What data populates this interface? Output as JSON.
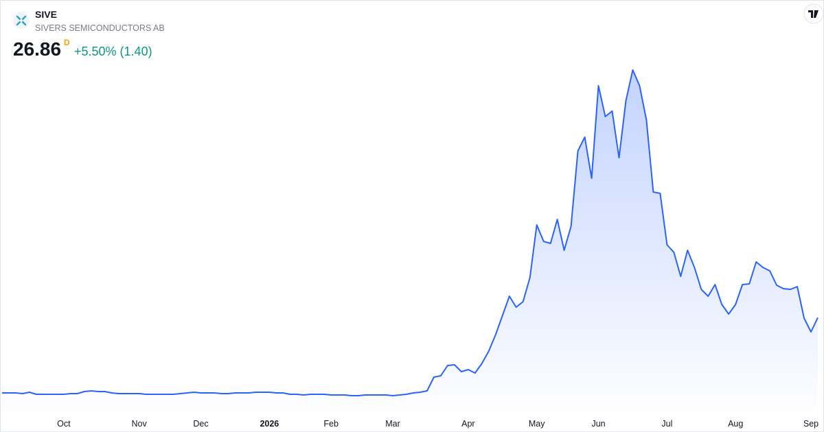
{
  "header": {
    "symbol": "SIVE",
    "name": "SIVERS SEMICONDUCTORS AB",
    "price": "26.86",
    "interval": "D",
    "change": "+5.50% (1.40)"
  },
  "chart_data": {
    "type": "area",
    "color": "#2962ff",
    "categories": [
      null,
      null,
      null,
      null,
      null,
      null,
      null,
      null,
      null,
      "Oct",
      null,
      null,
      null,
      null,
      null,
      null,
      null,
      null,
      null,
      null,
      "Nov",
      null,
      null,
      null,
      null,
      null,
      null,
      null,
      null,
      "Dec",
      null,
      null,
      null,
      null,
      null,
      null,
      null,
      null,
      null,
      "2026",
      null,
      null,
      null,
      null,
      null,
      null,
      null,
      null,
      "Feb",
      null,
      null,
      null,
      null,
      null,
      null,
      null,
      null,
      "Mar",
      null,
      null,
      null,
      null,
      null,
      null,
      null,
      null,
      null,
      null,
      "Apr",
      null,
      null,
      null,
      null,
      null,
      null,
      null,
      null,
      null,
      "May",
      null,
      null,
      null,
      null,
      null,
      null,
      null,
      null,
      "Jun",
      null,
      null,
      null,
      null,
      null,
      null,
      null,
      null,
      null,
      "Jul",
      null,
      null,
      null,
      null,
      null,
      null,
      null,
      null,
      null,
      "Aug",
      null,
      null,
      null,
      null,
      null,
      null,
      null,
      null,
      null,
      null,
      "Sep",
      null
    ],
    "values": [
      4.9,
      4.9,
      4.9,
      4.7,
      5.1,
      4.5,
      4.5,
      4.5,
      4.5,
      4.5,
      4.7,
      4.7,
      5.3,
      5.5,
      5.3,
      5.3,
      4.9,
      4.7,
      4.7,
      4.7,
      4.7,
      4.5,
      4.5,
      4.5,
      4.5,
      4.5,
      4.7,
      4.9,
      5.1,
      4.9,
      4.9,
      4.9,
      4.7,
      4.7,
      4.9,
      4.9,
      4.9,
      5.1,
      5.1,
      5.1,
      4.9,
      4.9,
      4.5,
      4.5,
      4.3,
      4.5,
      4.5,
      4.5,
      4.3,
      4.3,
      4.3,
      4.1,
      4.1,
      4.3,
      4.3,
      4.3,
      4.3,
      4.1,
      4.3,
      4.5,
      4.9,
      5.1,
      5.5,
      9.5,
      9.9,
      12.9,
      13.1,
      11.1,
      11.7,
      10.7,
      13.5,
      17.1,
      21.9,
      27.5,
      33.1,
      29.9,
      31.5,
      38.5,
      53.9,
      49.1,
      48.5,
      55.5,
      46.5,
      53.5,
      75.5,
      79.5,
      67.5,
      94.5,
      85.5,
      87.1,
      73.5,
      90.1,
      99.1,
      94.5,
      84.5,
      63.5,
      63.1,
      48.1,
      45.9,
      38.9,
      46.5,
      41.5,
      35.1,
      33.1,
      36.5,
      30.7,
      27.9,
      30.7,
      36.5,
      36.7,
      43.1,
      41.5,
      40.5,
      36.3,
      35.3,
      35.1,
      35.9,
      26.7,
      22.7,
      26.86
    ]
  }
}
